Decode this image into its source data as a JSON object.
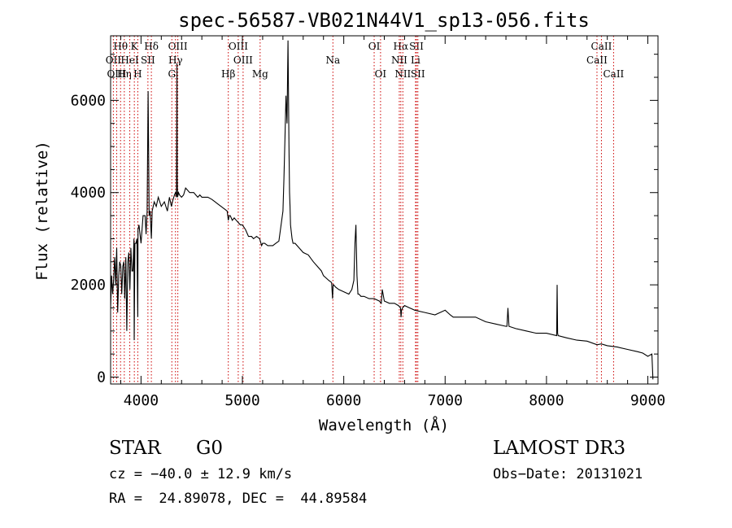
{
  "chart_data": {
    "type": "line",
    "title": "spec-56587-VB021N44V1_sp13-056.fits",
    "xlabel": "Wavelength (Å)",
    "ylabel": "Flux (relative)",
    "xlim": [
      3700,
      9100
    ],
    "ylim": [
      -150,
      7400
    ],
    "xticks": [
      4000,
      5000,
      6000,
      7000,
      8000,
      9000
    ],
    "yticks": [
      0,
      2000,
      4000,
      6000
    ],
    "xtick_labels": [
      "4000",
      "5000",
      "6000",
      "7000",
      "8000",
      "9000"
    ],
    "ytick_labels": [
      "0",
      "2000",
      "4000",
      "6000"
    ],
    "grid": false,
    "line_color": "#000000",
    "marker_color": "#cc0000",
    "series": [
      {
        "name": "spectrum",
        "x": [
          3700,
          3710,
          3720,
          3730,
          3740,
          3750,
          3760,
          3770,
          3780,
          3790,
          3800,
          3810,
          3820,
          3830,
          3840,
          3850,
          3860,
          3870,
          3880,
          3890,
          3900,
          3910,
          3920,
          3930,
          3933,
          3940,
          3950,
          3960,
          3968,
          3970,
          3980,
          4000,
          4020,
          4040,
          4050,
          4060,
          4070,
          4080,
          4090,
          4102,
          4110,
          4130,
          4150,
          4170,
          4200,
          4230,
          4260,
          4280,
          4300,
          4310,
          4330,
          4340,
          4350,
          4355,
          4357,
          4360,
          4370,
          4380,
          4400,
          4420,
          4440,
          4460,
          4480,
          4500,
          4520,
          4540,
          4560,
          4580,
          4600,
          4630,
          4660,
          4700,
          4730,
          4760,
          4790,
          4820,
          4850,
          4861,
          4870,
          4880,
          4900,
          4920,
          4940,
          4960,
          4980,
          5000,
          5030,
          5060,
          5090,
          5110,
          5140,
          5170,
          5190,
          5200,
          5220,
          5250,
          5280,
          5300,
          5330,
          5360,
          5400,
          5410,
          5420,
          5430,
          5440,
          5450,
          5460,
          5465,
          5470,
          5475,
          5480,
          5490,
          5500,
          5520,
          5560,
          5600,
          5650,
          5700,
          5740,
          5780,
          5800,
          5850,
          5880,
          5890,
          5895,
          5900,
          5920,
          5950,
          6000,
          6050,
          6080,
          6100,
          6110,
          6120,
          6130,
          6140,
          6150,
          6170,
          6200,
          6250,
          6300,
          6350,
          6370,
          6380,
          6400,
          6450,
          6500,
          6540,
          6560,
          6565,
          6570,
          6580,
          6600,
          6650,
          6700,
          6800,
          6900,
          7000,
          7050,
          7080,
          7100,
          7200,
          7300,
          7400,
          7500,
          7600,
          7610,
          7620,
          7630,
          7700,
          7800,
          7900,
          8000,
          8100,
          8105,
          8110,
          8115,
          8200,
          8300,
          8400,
          8500,
          8540,
          8600,
          8700,
          8800,
          8900,
          8950,
          9000,
          9040,
          9050
        ],
        "y": [
          1500,
          2200,
          1800,
          2100,
          2600,
          2000,
          2800,
          1400,
          2200,
          2500,
          2400,
          1800,
          2400,
          2500,
          1700,
          2600,
          1000,
          2500,
          2700,
          1900,
          2800,
          2300,
          2300,
          3000,
          800,
          2900,
          2900,
          3000,
          1300,
          3200,
          3300,
          2900,
          3500,
          3500,
          3100,
          3600,
          6200,
          3500,
          3600,
          3000,
          3600,
          3800,
          3700,
          3900,
          3700,
          3800,
          3600,
          3900,
          3700,
          3800,
          3950,
          4000,
          3900,
          6800,
          4300,
          3900,
          4000,
          3950,
          3900,
          3950,
          4100,
          4050,
          4000,
          4000,
          4000,
          3950,
          3900,
          3950,
          3900,
          3900,
          3900,
          3850,
          3800,
          3750,
          3700,
          3650,
          3600,
          3400,
          3500,
          3500,
          3400,
          3450,
          3400,
          3350,
          3300,
          3300,
          3200,
          3050,
          3050,
          3000,
          3050,
          3000,
          2850,
          2900,
          2900,
          2850,
          2850,
          2850,
          2900,
          2950,
          3600,
          4300,
          5200,
          6100,
          5500,
          7300,
          5000,
          4000,
          3700,
          3300,
          3200,
          3000,
          2900,
          2900,
          2800,
          2700,
          2650,
          2500,
          2400,
          2300,
          2200,
          2100,
          2050,
          1700,
          2000,
          2000,
          1950,
          1900,
          1850,
          1800,
          1900,
          2100,
          2900,
          3300,
          2200,
          1800,
          1800,
          1750,
          1750,
          1700,
          1700,
          1650,
          1600,
          1900,
          1650,
          1600,
          1600,
          1550,
          1500,
          1300,
          1450,
          1500,
          1550,
          1500,
          1450,
          1400,
          1350,
          1450,
          1350,
          1300,
          1300,
          1300,
          1300,
          1200,
          1150,
          1100,
          1100,
          1500,
          1100,
          1050,
          1000,
          950,
          950,
          900,
          2000,
          950,
          900,
          850,
          800,
          780,
          700,
          720,
          680,
          650,
          600,
          550,
          520,
          450,
          500,
          -50
        ]
      }
    ],
    "line_markers": [
      {
        "label": "Hθ",
        "x": 3798,
        "row": 1
      },
      {
        "label": "OII",
        "x": 3727,
        "row": 2
      },
      {
        "label": "OIII",
        "x": 3760,
        "row": 3
      },
      {
        "label": "Hη",
        "x": 3835,
        "row": 3
      },
      {
        "label": "HeI",
        "x": 3889,
        "row": 2
      },
      {
        "label": "K",
        "x": 3934,
        "row": 1
      },
      {
        "label": "SII",
        "x": 4068,
        "row": 2
      },
      {
        "label": "H",
        "x": 3968,
        "row": 3
      },
      {
        "label": "Hδ",
        "x": 4102,
        "row": 1
      },
      {
        "label": "OIII",
        "x": 4363,
        "row": 1
      },
      {
        "label": "Hγ",
        "x": 4340,
        "row": 2
      },
      {
        "label": "G",
        "x": 4304,
        "row": 3
      },
      {
        "label": "Hβ",
        "x": 4861,
        "row": 3
      },
      {
        "label": "OIII",
        "x": 4959,
        "row": 1
      },
      {
        "label": "OIII",
        "x": 5007,
        "row": 2
      },
      {
        "label": "Mg",
        "x": 5175,
        "row": 3
      },
      {
        "label": "Na",
        "x": 5893,
        "row": 2
      },
      {
        "label": "OI",
        "x": 6300,
        "row": 1
      },
      {
        "label": "OI",
        "x": 6363,
        "row": 3
      },
      {
        "label": "Hα",
        "x": 6563,
        "row": 1
      },
      {
        "label": "NII",
        "x": 6548,
        "row": 2
      },
      {
        "label": "NII",
        "x": 6583,
        "row": 3
      },
      {
        "label": "SII",
        "x": 6717,
        "row": 1
      },
      {
        "label": "Li",
        "x": 6708,
        "row": 2
      },
      {
        "label": "SII",
        "x": 6731,
        "row": 3
      },
      {
        "label": "CaII",
        "x": 8542,
        "row": 1
      },
      {
        "label": "CaII",
        "x": 8498,
        "row": 2
      },
      {
        "label": "CaII",
        "x": 8662,
        "row": 3
      }
    ]
  },
  "info": {
    "class_label": "STAR",
    "subclass": "G0",
    "survey": "LAMOST DR3",
    "cz": "cz = −40.0 ± 12.9 km/s",
    "obs_date": "Obs−Date: 20131021",
    "coords": "RA =  24.89078, DEC =  44.89584"
  }
}
